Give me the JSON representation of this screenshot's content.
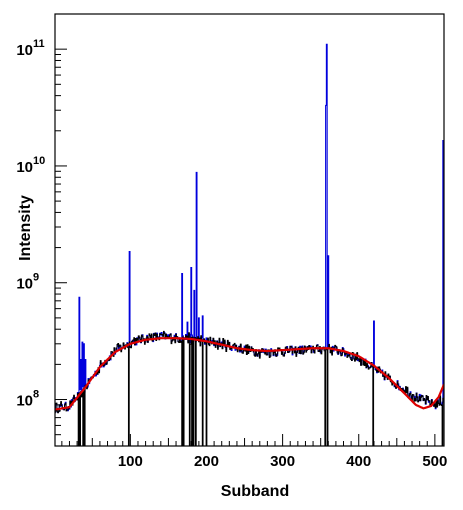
{
  "chart_data": {
    "type": "line",
    "xlabel": "Subband",
    "ylabel": "Intensity",
    "xlim": [
      1,
      512
    ],
    "ylim": [
      40000000.0,
      200000000000.0
    ],
    "y_scale": "log",
    "grid": false,
    "legend": "none",
    "x_ticks": [
      {
        "value": 100,
        "label": "100"
      },
      {
        "value": 200,
        "label": "200"
      },
      {
        "value": 300,
        "label": "300"
      },
      {
        "value": 400,
        "label": "400"
      },
      {
        "value": 500,
        "label": "500"
      }
    ],
    "y_ticks": [
      {
        "value": 100000000.0,
        "base": "10",
        "exp": "8"
      },
      {
        "value": 1000000000.0,
        "base": "10",
        "exp": "9"
      },
      {
        "value": 10000000000.0,
        "base": "10",
        "exp": "10"
      },
      {
        "value": 100000000000.0,
        "base": "10",
        "exp": "11"
      }
    ],
    "series": [
      {
        "role": "blue spectrum with spikes",
        "color": "#0000dd",
        "baseline_points": [
          [
            1,
            85000000.0
          ],
          [
            20,
            88000000.0
          ],
          [
            40,
            125000000.0
          ],
          [
            60,
            190000000.0
          ],
          [
            80,
            260000000.0
          ],
          [
            100,
            310000000.0
          ],
          [
            120,
            335000000.0
          ],
          [
            140,
            350000000.0
          ],
          [
            160,
            340000000.0
          ],
          [
            180,
            335000000.0
          ],
          [
            200,
            315000000.0
          ],
          [
            220,
            300000000.0
          ],
          [
            240,
            280000000.0
          ],
          [
            260,
            260000000.0
          ],
          [
            280,
            255000000.0
          ],
          [
            300,
            260000000.0
          ],
          [
            320,
            265000000.0
          ],
          [
            340,
            270000000.0
          ],
          [
            360,
            275000000.0
          ],
          [
            380,
            255000000.0
          ],
          [
            400,
            225000000.0
          ],
          [
            420,
            185000000.0
          ],
          [
            440,
            150000000.0
          ],
          [
            460,
            122000000.0
          ],
          [
            480,
            102000000.0
          ],
          [
            500,
            90000000.0
          ],
          [
            512,
            100000000.0
          ]
        ],
        "spikes": [
          [
            33,
            750000000.0
          ],
          [
            35,
            220000000.0
          ],
          [
            37,
            310000000.0
          ],
          [
            39,
            300000000.0
          ],
          [
            41,
            220000000.0
          ],
          [
            99,
            1850000000.0
          ],
          [
            168,
            1200000000.0
          ],
          [
            175,
            460000000.0
          ],
          [
            180,
            1350000000.0
          ],
          [
            184,
            860000000.0
          ],
          [
            187,
            8800000000.0
          ],
          [
            190,
            500000000.0
          ],
          [
            195,
            520000000.0
          ],
          [
            357,
            33000000000.0
          ],
          [
            358,
            110000000000.0
          ],
          [
            360,
            1700000000.0
          ],
          [
            420,
            470000000.0
          ],
          [
            511,
            16500000000.0
          ]
        ]
      },
      {
        "role": "black data",
        "color": "#000000",
        "dips": [
          [
            32,
            40000000.0
          ],
          [
            34,
            40000000.0
          ],
          [
            38,
            40000000.0
          ],
          [
            40,
            40000000.0
          ],
          [
            98,
            40000000.0
          ],
          [
            168,
            40000000.0
          ],
          [
            170,
            40000000.0
          ],
          [
            178,
            40000000.0
          ],
          [
            181,
            40000000.0
          ],
          [
            183,
            40000000.0
          ],
          [
            186,
            40000000.0
          ],
          [
            195,
            40000000.0
          ],
          [
            200,
            40000000.0
          ],
          [
            356,
            40000000.0
          ],
          [
            359,
            40000000.0
          ],
          [
            419,
            40000000.0
          ],
          [
            510,
            40000000.0
          ]
        ]
      },
      {
        "role": "red fit",
        "color": "#dd0000",
        "points": [
          [
            1,
            82000000.0
          ],
          [
            20,
            86000000.0
          ],
          [
            40,
            125000000.0
          ],
          [
            60,
            190000000.0
          ],
          [
            80,
            255000000.0
          ],
          [
            100,
            300000000.0
          ],
          [
            120,
            325000000.0
          ],
          [
            140,
            335000000.0
          ],
          [
            160,
            335000000.0
          ],
          [
            180,
            330000000.0
          ],
          [
            200,
            315000000.0
          ],
          [
            220,
            295000000.0
          ],
          [
            240,
            275000000.0
          ],
          [
            260,
            265000000.0
          ],
          [
            280,
            260000000.0
          ],
          [
            300,
            265000000.0
          ],
          [
            320,
            270000000.0
          ],
          [
            340,
            275000000.0
          ],
          [
            360,
            275000000.0
          ],
          [
            380,
            260000000.0
          ],
          [
            400,
            235000000.0
          ],
          [
            420,
            195000000.0
          ],
          [
            440,
            152000000.0
          ],
          [
            460,
            113000000.0
          ],
          [
            475,
            90000000.0
          ],
          [
            485,
            84000000.0
          ],
          [
            495,
            88000000.0
          ],
          [
            505,
            105000000.0
          ],
          [
            512,
            135000000.0
          ]
        ]
      }
    ]
  }
}
